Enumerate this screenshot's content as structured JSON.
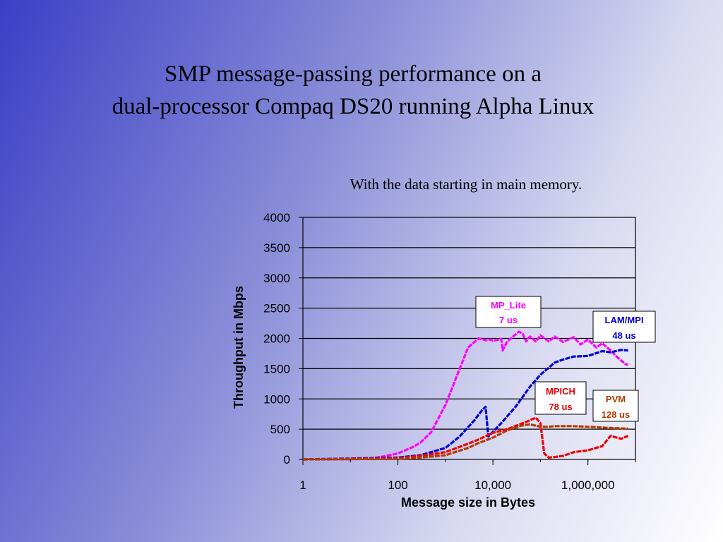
{
  "slide": {
    "title_line1": "SMP message-passing performance on a",
    "title_line2": "dual-processor Compaq DS20 running Alpha Linux",
    "subtitle": "With the data starting in main memory."
  },
  "chart_data": {
    "type": "line",
    "xlabel": "Message size in Bytes",
    "ylabel": "Throughput in Mbps",
    "x_scale": "log",
    "xlim": [
      1,
      10000000
    ],
    "ylim": [
      0,
      4000
    ],
    "x_ticks": [
      {
        "value": 1,
        "label": "1"
      },
      {
        "value": 100,
        "label": "100"
      },
      {
        "value": 10000,
        "label": "10,000"
      },
      {
        "value": 1000000,
        "label": "1,000,000"
      }
    ],
    "y_ticks": [
      0,
      500,
      1000,
      1500,
      2000,
      2500,
      3000,
      3500,
      4000
    ],
    "grid": "horizontal",
    "series": [
      {
        "name": "MP_Lite",
        "note": "7 us",
        "color": "#ff00ff",
        "x": [
          1,
          10,
          30,
          50,
          100,
          200,
          300,
          500,
          1000,
          2000,
          3000,
          5000,
          7000,
          9000,
          10000,
          15000,
          16000,
          20000,
          35000,
          42000,
          50000,
          60000,
          80000,
          100000,
          150000,
          200000,
          300000,
          500000,
          700000,
          1000000,
          1500000,
          2000000,
          3000000,
          4000000,
          6000000,
          7000000
        ],
        "y": [
          0,
          5,
          20,
          50,
          100,
          200,
          280,
          450,
          900,
          1500,
          1850,
          2000,
          1970,
          1980,
          1960,
          1990,
          1800,
          1950,
          2110,
          2080,
          1950,
          2030,
          1950,
          2050,
          1950,
          2030,
          1940,
          2020,
          1900,
          1980,
          1850,
          1920,
          1800,
          1700,
          1580,
          1560
        ]
      },
      {
        "name": "LAM/MPI",
        "note": "48 us",
        "color": "#0000dd",
        "x": [
          1,
          100,
          300,
          1000,
          2000,
          4000,
          6000,
          7000,
          8000,
          9000,
          15000,
          30000,
          60000,
          100000,
          200000,
          300000,
          500000,
          1000000,
          2000000,
          3000000,
          5000000,
          7000000
        ],
        "y": [
          0,
          30,
          70,
          190,
          380,
          640,
          820,
          870,
          380,
          420,
          600,
          870,
          1200,
          1400,
          1600,
          1650,
          1700,
          1710,
          1790,
          1770,
          1810,
          1800
        ]
      },
      {
        "name": "MPICH",
        "note": "78 us",
        "color": "#ee0000",
        "x": [
          1,
          100,
          300,
          1000,
          3000,
          5000,
          10000,
          20000,
          50000,
          80000,
          100000,
          120000,
          150000,
          200000,
          300000,
          500000,
          1000000,
          2000000,
          3000000,
          5000000,
          7000000
        ],
        "y": [
          0,
          20,
          60,
          120,
          260,
          330,
          440,
          500,
          620,
          690,
          600,
          100,
          30,
          40,
          60,
          120,
          150,
          220,
          390,
          340,
          390
        ]
      },
      {
        "name": "PVM",
        "note": "128 us",
        "color": "#b23a00",
        "x": [
          1,
          100,
          300,
          1000,
          3000,
          5000,
          10000,
          20000,
          40000,
          60000,
          100000,
          150000,
          200000,
          500000,
          1000000,
          3000000,
          7000000
        ],
        "y": [
          0,
          10,
          30,
          70,
          190,
          270,
          360,
          480,
          560,
          580,
          540,
          540,
          550,
          550,
          540,
          520,
          510
        ]
      }
    ]
  },
  "labels": {
    "mp_lite": {
      "name": "MP_Lite",
      "latency": "7 us",
      "color": "#ff00ff"
    },
    "lam_mpi": {
      "name": "LAM/MPI",
      "latency": "48 us",
      "color": "#0000dd"
    },
    "mpich": {
      "name": "MPICH",
      "latency": "78 us",
      "color": "#ee0000"
    },
    "pvm": {
      "name": "PVM",
      "latency": "128 us",
      "color": "#b23a00"
    }
  }
}
